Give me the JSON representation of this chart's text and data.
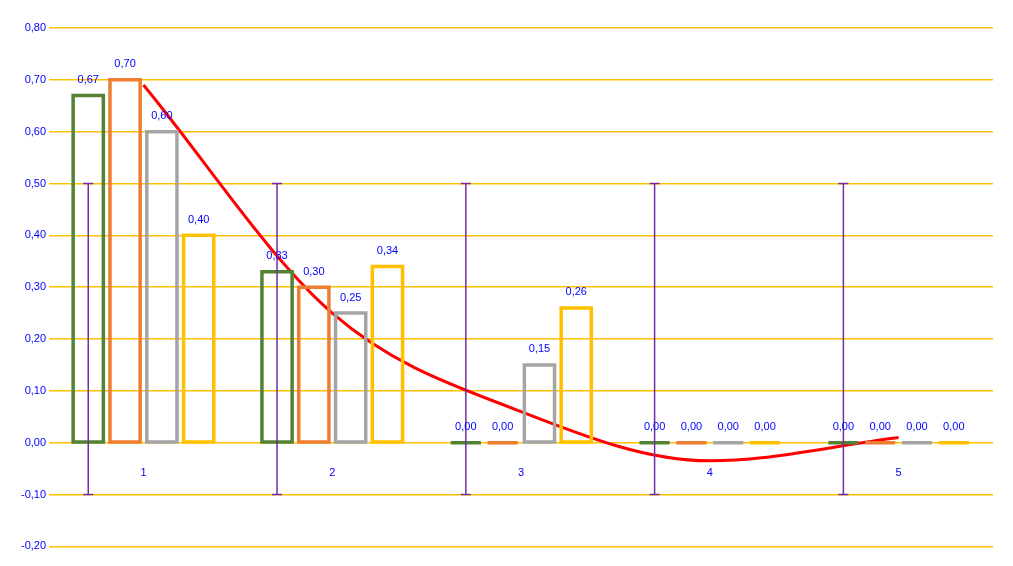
{
  "chart_data": {
    "type": "bar",
    "categories": [
      "1",
      "2",
      "3",
      "4",
      "5"
    ],
    "series": [
      {
        "color": "#548235",
        "values": [
          0.67,
          0.33,
          0,
          0,
          0
        ],
        "value_labels": [
          "0,67",
          "0,33",
          "0,00",
          "0,00",
          "0,00"
        ],
        "errors": [
          [
            -0.1,
            0.5
          ],
          [
            -0.1,
            0.5
          ],
          [
            -0.1,
            0.5
          ],
          [
            -0.1,
            0.5
          ],
          [
            -0.1,
            0.5
          ]
        ]
      },
      {
        "color": "#ed7d31",
        "values": [
          0.7,
          0.3,
          0,
          0,
          0
        ],
        "value_labels": [
          "0,70",
          "0,30",
          "0,00",
          "0,00",
          "0,00"
        ]
      },
      {
        "color": "#a5a5a5",
        "values": [
          0.6,
          0.25,
          0.15,
          0,
          0
        ],
        "value_labels": [
          "0,60",
          "0,25",
          "0,15",
          "0,00",
          "0,00"
        ]
      },
      {
        "color": "#ffc000",
        "values": [
          0.4,
          0.34,
          0.26,
          0,
          0
        ],
        "value_labels": [
          "0,40",
          "0,34",
          "0,26",
          "0,00",
          "0,00"
        ]
      },
      {
        "type": "line",
        "color": "#ff0000",
        "values": [
          0.69,
          0.25,
          0.06,
          -0.035,
          0.01
        ]
      }
    ],
    "ylim": [
      -0.2,
      0.8
    ],
    "yticks": [
      {
        "value": -0.2,
        "label": "-0,20"
      },
      {
        "value": -0.1,
        "label": "-0,10"
      },
      {
        "value": 0,
        "label": "0,00"
      },
      {
        "value": 0.1,
        "label": "0,10"
      },
      {
        "value": 0.2,
        "label": "0,20"
      },
      {
        "value": 0.3,
        "label": "0,30"
      },
      {
        "value": 0.4,
        "label": "0,40"
      },
      {
        "value": 0.5,
        "label": "0,50"
      },
      {
        "value": 0.6,
        "label": "0,60"
      },
      {
        "value": 0.7,
        "label": "0,70"
      },
      {
        "value": 0.8,
        "label": "0,80"
      }
    ],
    "grid": "y",
    "legend": false
  }
}
